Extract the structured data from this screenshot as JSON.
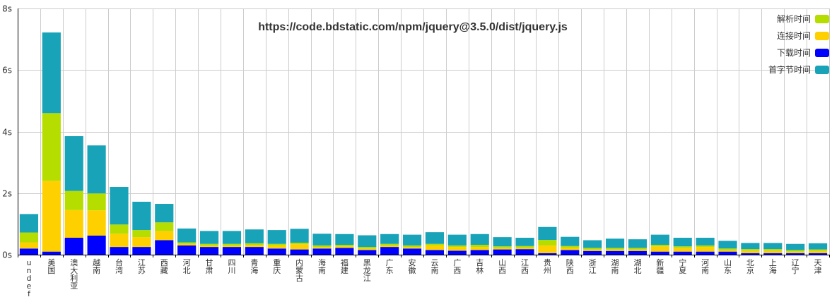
{
  "chart_data": {
    "type": "bar",
    "stacked": true,
    "title": "https://code.bdstatic.com/npm/jquery@3.5.0/dist/jquery.js",
    "xlabel": "",
    "ylabel": "",
    "ylim": [
      0,
      8
    ],
    "y_ticks": [
      0,
      2,
      4,
      6,
      8
    ],
    "y_tick_suffix": "s",
    "grid": true,
    "legend_position": "top-right",
    "categories": [
      "undef",
      "美国",
      "澳大利亚",
      "越南",
      "台湾",
      "江苏",
      "西藏",
      "河北",
      "甘肃",
      "四川",
      "青海",
      "重庆",
      "内蒙古",
      "海南",
      "福建",
      "黑龙江",
      "广东",
      "安徽",
      "云南",
      "广西",
      "吉林",
      "山西",
      "江西",
      "贵州",
      "陕西",
      "浙江",
      "湖南",
      "湖北",
      "新疆",
      "宁夏",
      "河南",
      "山东",
      "北京",
      "上海",
      "辽宁",
      "天津"
    ],
    "series": [
      {
        "name": "下载时间",
        "color": "#0000ff",
        "values": [
          0.2,
          0.1,
          0.55,
          0.62,
          0.25,
          0.25,
          0.47,
          0.3,
          0.25,
          0.25,
          0.25,
          0.2,
          0.17,
          0.2,
          0.22,
          0.15,
          0.25,
          0.2,
          0.15,
          0.13,
          0.15,
          0.17,
          0.18,
          0.05,
          0.15,
          0.12,
          0.12,
          0.12,
          0.1,
          0.1,
          0.1,
          0.1,
          0.05,
          0.05,
          0.05,
          0.05
        ]
      },
      {
        "name": "连接时间",
        "color": "#ffd000",
        "values": [
          0.2,
          2.3,
          0.9,
          0.82,
          0.43,
          0.32,
          0.3,
          0.05,
          0.05,
          0.05,
          0.07,
          0.1,
          0.17,
          0.05,
          0.05,
          0.05,
          0.05,
          0.05,
          0.15,
          0.12,
          0.1,
          0.05,
          0.05,
          0.25,
          0.08,
          0.05,
          0.05,
          0.05,
          0.17,
          0.12,
          0.15,
          0.05,
          0.08,
          0.08,
          0.05,
          0.07
        ]
      },
      {
        "name": "解析时间",
        "color": "#b5dd00",
        "values": [
          0.32,
          2.2,
          0.62,
          0.55,
          0.3,
          0.23,
          0.28,
          0.05,
          0.05,
          0.05,
          0.05,
          0.05,
          0.05,
          0.05,
          0.05,
          0.05,
          0.05,
          0.05,
          0.05,
          0.05,
          0.07,
          0.05,
          0.05,
          0.18,
          0.05,
          0.05,
          0.05,
          0.05,
          0.05,
          0.05,
          0.05,
          0.05,
          0.05,
          0.05,
          0.05,
          0.05
        ]
      },
      {
        "name": "首字节时间",
        "color": "#18a3b8",
        "values": [
          0.6,
          2.62,
          1.78,
          1.56,
          1.22,
          0.92,
          0.6,
          0.45,
          0.42,
          0.42,
          0.45,
          0.45,
          0.45,
          0.38,
          0.35,
          0.38,
          0.32,
          0.35,
          0.38,
          0.35,
          0.35,
          0.3,
          0.27,
          0.42,
          0.3,
          0.25,
          0.3,
          0.28,
          0.33,
          0.28,
          0.25,
          0.25,
          0.2,
          0.2,
          0.2,
          0.2
        ]
      }
    ]
  }
}
